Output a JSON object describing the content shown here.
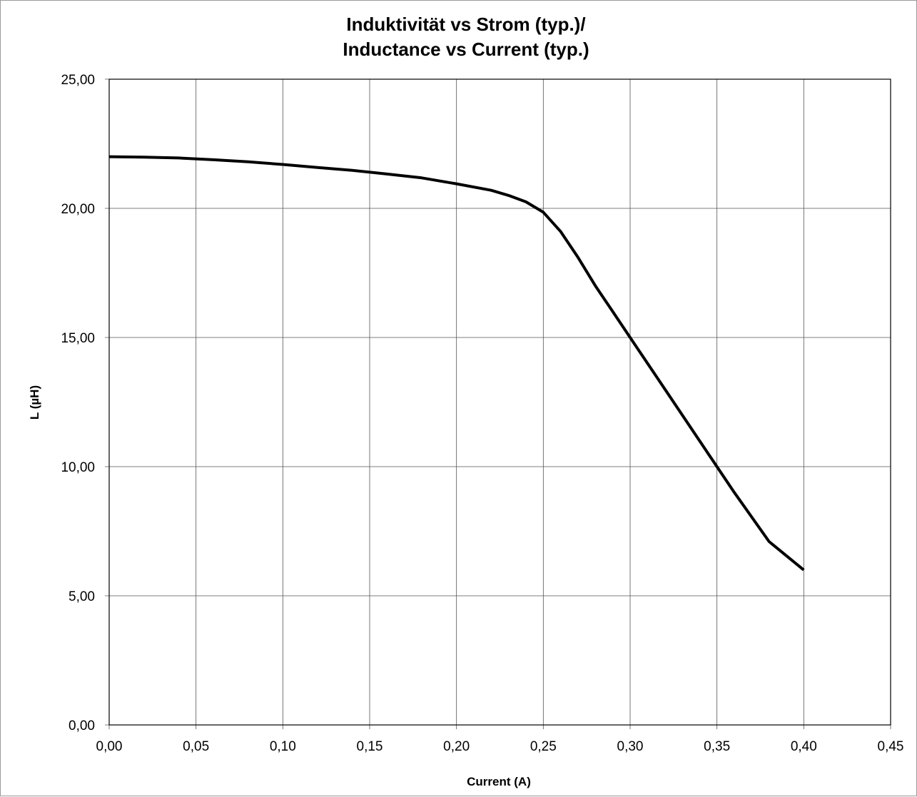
{
  "chart_data": {
    "type": "line",
    "title_lines": [
      "Induktivität vs Strom (typ.)/",
      "Inductance vs Current (typ.)"
    ],
    "xlabel": "Current (A)",
    "ylabel": "L (µH)",
    "xlim": [
      0,
      0.45
    ],
    "ylim": [
      0,
      25
    ],
    "x_ticks": [
      "0,00",
      "0,05",
      "0,10",
      "0,15",
      "0,20",
      "0,25",
      "0,30",
      "0,35",
      "0,40",
      "0,45"
    ],
    "y_ticks": [
      "0,00",
      "5,00",
      "10,00",
      "15,00",
      "20,00",
      "25,00"
    ],
    "grid": true,
    "line_color": "#000000",
    "series": [
      {
        "x": [
          0.0,
          0.02,
          0.04,
          0.06,
          0.08,
          0.1,
          0.12,
          0.14,
          0.16,
          0.18,
          0.2,
          0.22,
          0.23,
          0.24,
          0.25,
          0.26,
          0.27,
          0.28,
          0.29,
          0.3,
          0.32,
          0.34,
          0.36,
          0.38,
          0.4
        ],
        "y": [
          22.0,
          21.98,
          21.95,
          21.88,
          21.8,
          21.7,
          21.58,
          21.47,
          21.33,
          21.18,
          20.95,
          20.7,
          20.5,
          20.25,
          19.85,
          19.1,
          18.1,
          17.0,
          16.0,
          15.0,
          13.0,
          11.0,
          9.0,
          7.1,
          6.0
        ]
      }
    ]
  }
}
